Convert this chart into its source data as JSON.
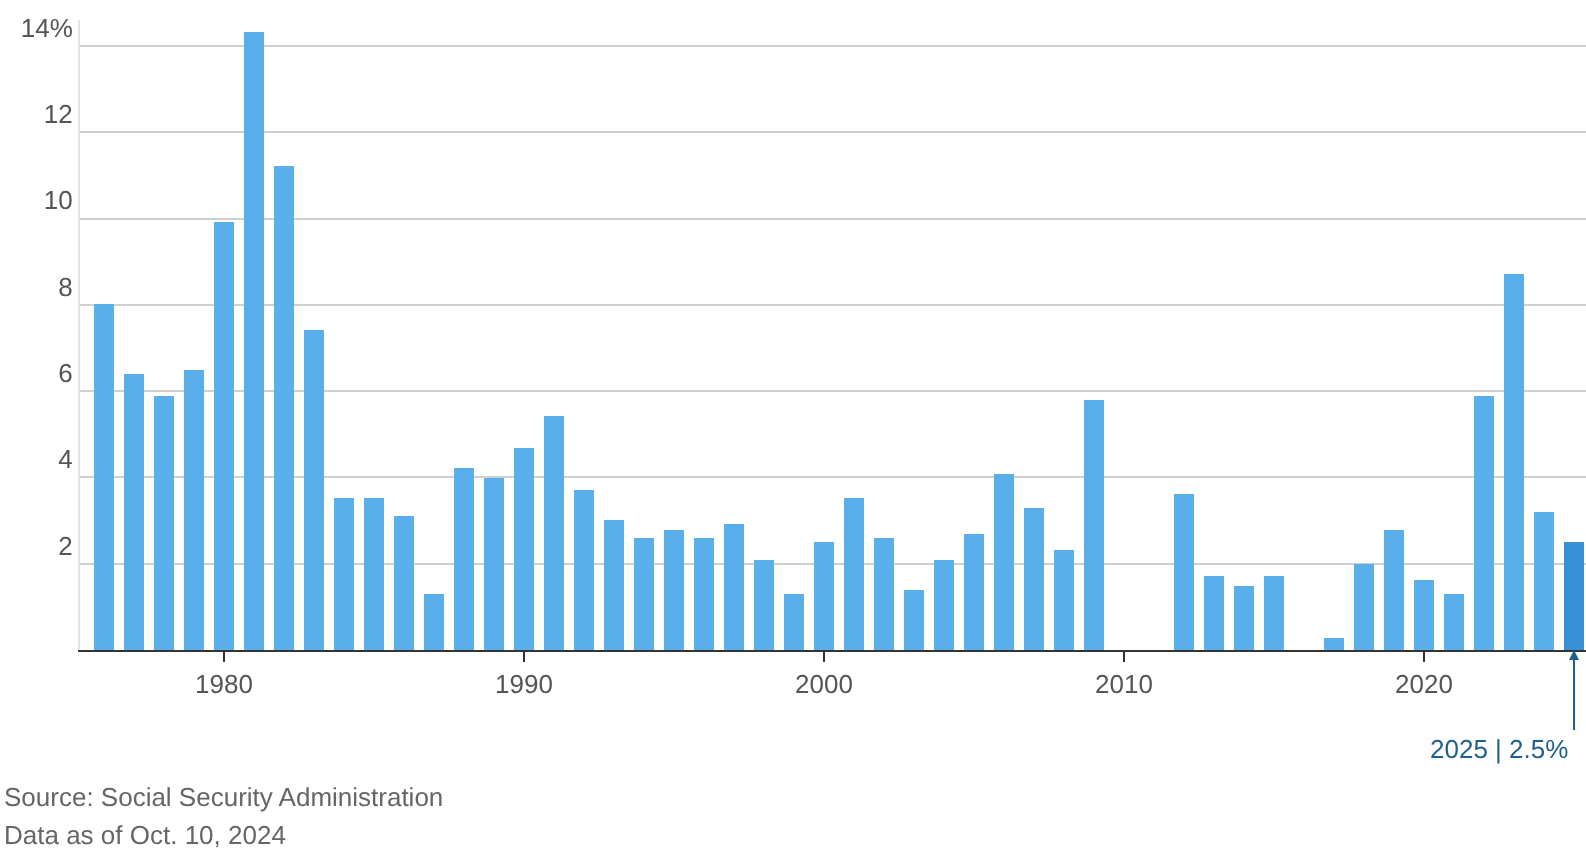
{
  "chart_data": {
    "type": "bar",
    "x": [
      1976,
      1977,
      1978,
      1979,
      1980,
      1981,
      1982,
      1983,
      1984,
      1985,
      1986,
      1987,
      1988,
      1989,
      1990,
      1991,
      1992,
      1993,
      1994,
      1995,
      1996,
      1997,
      1998,
      1999,
      2000,
      2001,
      2002,
      2003,
      2004,
      2005,
      2006,
      2007,
      2008,
      2009,
      2010,
      2011,
      2012,
      2013,
      2014,
      2015,
      2016,
      2017,
      2018,
      2019,
      2020,
      2021,
      2022,
      2023,
      2024,
      2025
    ],
    "values": [
      8.0,
      6.4,
      5.9,
      6.5,
      9.9,
      14.3,
      11.2,
      7.4,
      3.5,
      3.5,
      3.1,
      1.3,
      4.2,
      4.0,
      4.7,
      5.4,
      3.7,
      3.0,
      2.6,
      2.8,
      2.6,
      2.9,
      2.1,
      1.3,
      2.5,
      3.5,
      2.6,
      1.4,
      2.1,
      2.7,
      4.1,
      3.3,
      2.3,
      5.8,
      0,
      0,
      3.6,
      1.7,
      1.5,
      1.7,
      0,
      0.3,
      2.0,
      2.8,
      1.6,
      1.3,
      5.9,
      8.7,
      3.2,
      2.5
    ],
    "colors": [
      "#5aaeea",
      "#5aaeea",
      "#5aaeea",
      "#5aaeea",
      "#5aaeea",
      "#5aaeea",
      "#5aaeea",
      "#5aaeea",
      "#5aaeea",
      "#5aaeea",
      "#5aaeea",
      "#5aaeea",
      "#5aaeea",
      "#5aaeea",
      "#5aaeea",
      "#5aaeea",
      "#5aaeea",
      "#5aaeea",
      "#5aaeea",
      "#5aaeea",
      "#5aaeea",
      "#5aaeea",
      "#5aaeea",
      "#5aaeea",
      "#5aaeea",
      "#5aaeea",
      "#5aaeea",
      "#5aaeea",
      "#5aaeea",
      "#5aaeea",
      "#5aaeea",
      "#5aaeea",
      "#5aaeea",
      "#5aaeea",
      "#5aaeea",
      "#5aaeea",
      "#5aaeea",
      "#5aaeea",
      "#5aaeea",
      "#5aaeea",
      "#5aaeea",
      "#5aaeea",
      "#5aaeea",
      "#5aaeea",
      "#5aaeea",
      "#5aaeea",
      "#5aaeea",
      "#5aaeea",
      "#5aaeea",
      "#3a90d4"
    ],
    "xlim": [
      1975.2,
      2025.4
    ],
    "xticks": [
      1980,
      1990,
      2000,
      2010,
      2020
    ],
    "ylim": [
      0,
      14.6
    ],
    "yticks": [
      2,
      4,
      6,
      8,
      10,
      12,
      {
        "value": 14,
        "label": "14%"
      }
    ],
    "grid": "y",
    "annotations": [
      {
        "text": "2025 | 2.5%",
        "x": 2025,
        "y": 0
      },
      "Source: Social Security Administration",
      "Data as of Oct. 10, 2024"
    ]
  }
}
